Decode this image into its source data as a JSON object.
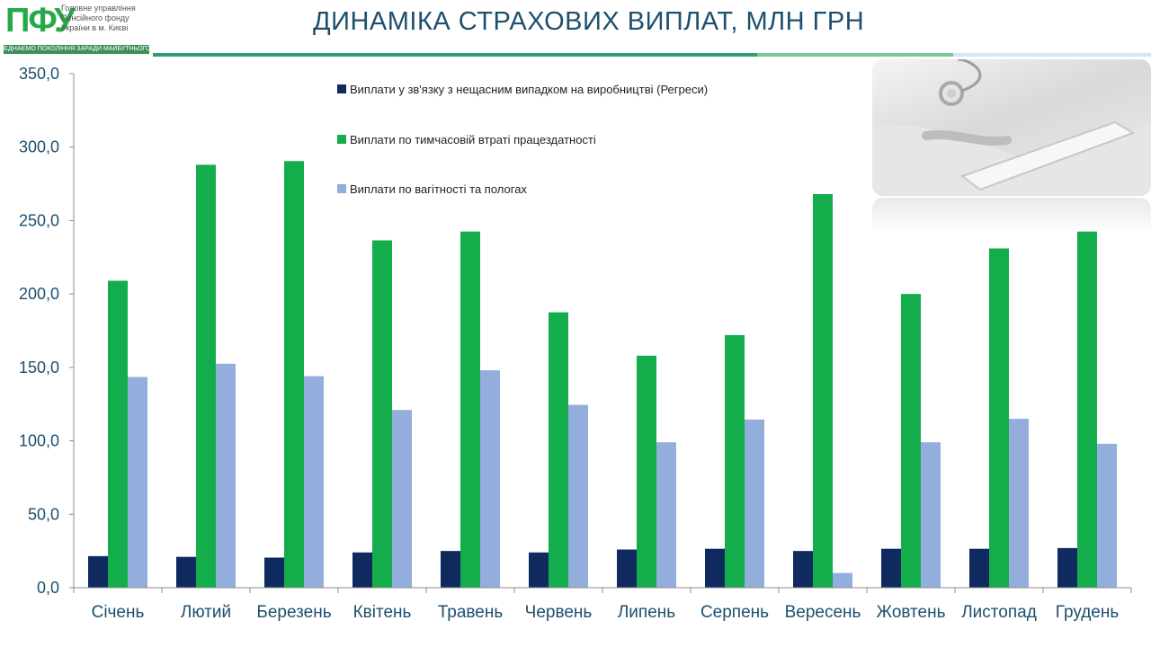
{
  "header": {
    "logo_mark": "ПФУ",
    "logo_lines": [
      "Головне управління",
      "Пенсійного фонду",
      "України в м. Києві"
    ],
    "logo_motto": "ЄДНАЄМО ПОКОЛІННЯ ЗАРАДИ МАЙБУТНЬОГО",
    "title": "ДИНАМІКА СТРАХОВИХ ВИПЛАТ, МЛН ГРН"
  },
  "colors": {
    "title": "#1d4f6e",
    "band_dark": "#2e9e72",
    "band_mid": "#7cc79a",
    "band_light": "#cfe9f1",
    "axis_text": "#1d4f6e",
    "gridline": "#bfbfbf"
  },
  "decor": {
    "photo_icon": "stethoscope-tablet-photo"
  },
  "chart_data": {
    "type": "bar",
    "title": "",
    "xlabel": "",
    "ylabel": "",
    "ylim": [
      0,
      350
    ],
    "yticks": [
      "0,0",
      "50,0",
      "100,0",
      "150,0",
      "200,0",
      "250,0",
      "300,0",
      "350,0"
    ],
    "ytick_values": [
      0,
      50,
      100,
      150,
      200,
      250,
      300,
      350
    ],
    "grid": false,
    "legend_position": "top-center",
    "categories": [
      "Січень",
      "Лютий",
      "Березень",
      "Квітень",
      "Травень",
      "Червень",
      "Липень",
      "Серпень",
      "Вересень",
      "Жовтень",
      "Листопад",
      "Грудень"
    ],
    "series": [
      {
        "name": "Виплати у зв'язку з нещасним випадком на виробництві  (Регреси)",
        "color": "#0f2a5e",
        "values": [
          21.5,
          21.0,
          20.5,
          24.0,
          25.0,
          24.0,
          26.0,
          26.5,
          25.0,
          26.5,
          26.5,
          27.0
        ]
      },
      {
        "name": "Виплати по тимчасовій втраті працездатності",
        "color": "#13ad4b",
        "values": [
          209.0,
          288.0,
          290.5,
          236.5,
          242.5,
          187.5,
          158.0,
          172.0,
          268.0,
          200.0,
          231.0,
          242.5
        ]
      },
      {
        "name": "Виплати по вагітності та пологах",
        "color": "#93addd",
        "values": [
          143.5,
          152.5,
          144.0,
          121.0,
          148.0,
          124.5,
          99.0,
          114.5,
          10.0,
          99.0,
          115.0,
          98.0
        ]
      }
    ]
  }
}
